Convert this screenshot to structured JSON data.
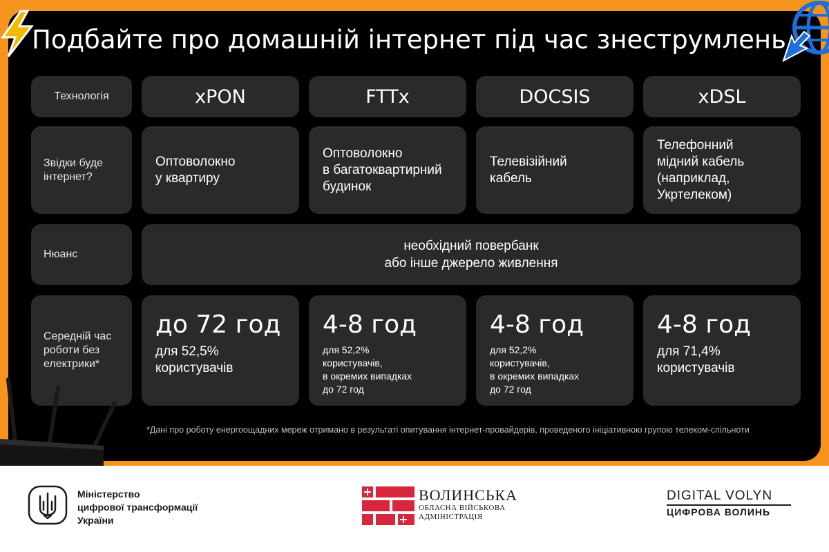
{
  "title": "Подбайте про домашній інтернет під час знеструмлень",
  "row_labels": {
    "technology": "Технологія",
    "source": "Звідки буде інтернет?",
    "nuance": "Нюанс",
    "time": "Середній час роботи без електрики*"
  },
  "columns": [
    {
      "name": "xPON",
      "source": "Оптоволокно\nу квартиру",
      "time_big": "до 72 год",
      "time_sub": "для 52,5%\nкористувачів"
    },
    {
      "name": "FTTx",
      "source": "Оптоволокно\nв багатоквартирний\nбудинок",
      "time_big": "4-8 год",
      "time_sub": "для 52,2%\nкористувачів,\nв окремих випадках\nдо 72 год"
    },
    {
      "name": "DOCSIS",
      "source": "Телевізійний\nкабель",
      "time_big": "4-8 год",
      "time_sub": "для 52,2%\nкористувачів,\nв окремих випадках\nдо 72 год"
    },
    {
      "name": "xDSL",
      "source": "Телефонний\nмідний кабель\n(наприклад,\nУкртелеком)",
      "time_big": "4-8 год",
      "time_sub": "для 71,4%\nкористувачів"
    }
  ],
  "nuance_text": "необхідний повербанк\nабо інше джерело живлення",
  "footnote": "*Дані про роботу енергоощадних мереж отримано в результаті опитування інтернет-провайдерів, проведеного ініціативною групою телеком-спільноти",
  "footer": {
    "ministry": "Міністерство\nцифрової трансформації\nУкраїни",
    "volyn_title": "ВОЛИНСЬКА",
    "volyn_sub": "ОБЛАСНА ВІЙСЬКОВА\nАДМІНІСТРАЦІЯ",
    "digital_en": "DIGITAL VOLYN",
    "digital_ua": "ЦИФРОВА ВОЛИНЬ"
  },
  "colors": {
    "accent_orange": "#f7941d",
    "panel": "#000000",
    "cell": "#2a2a2a",
    "globe_blue": "#1e6fd9",
    "lightning": "#f5b800",
    "volyn_red": "#d7263d"
  },
  "icons": [
    "lightning-icon",
    "globe-cursor-icon",
    "router-icon",
    "trident-icon",
    "volyn-coat-icon"
  ]
}
